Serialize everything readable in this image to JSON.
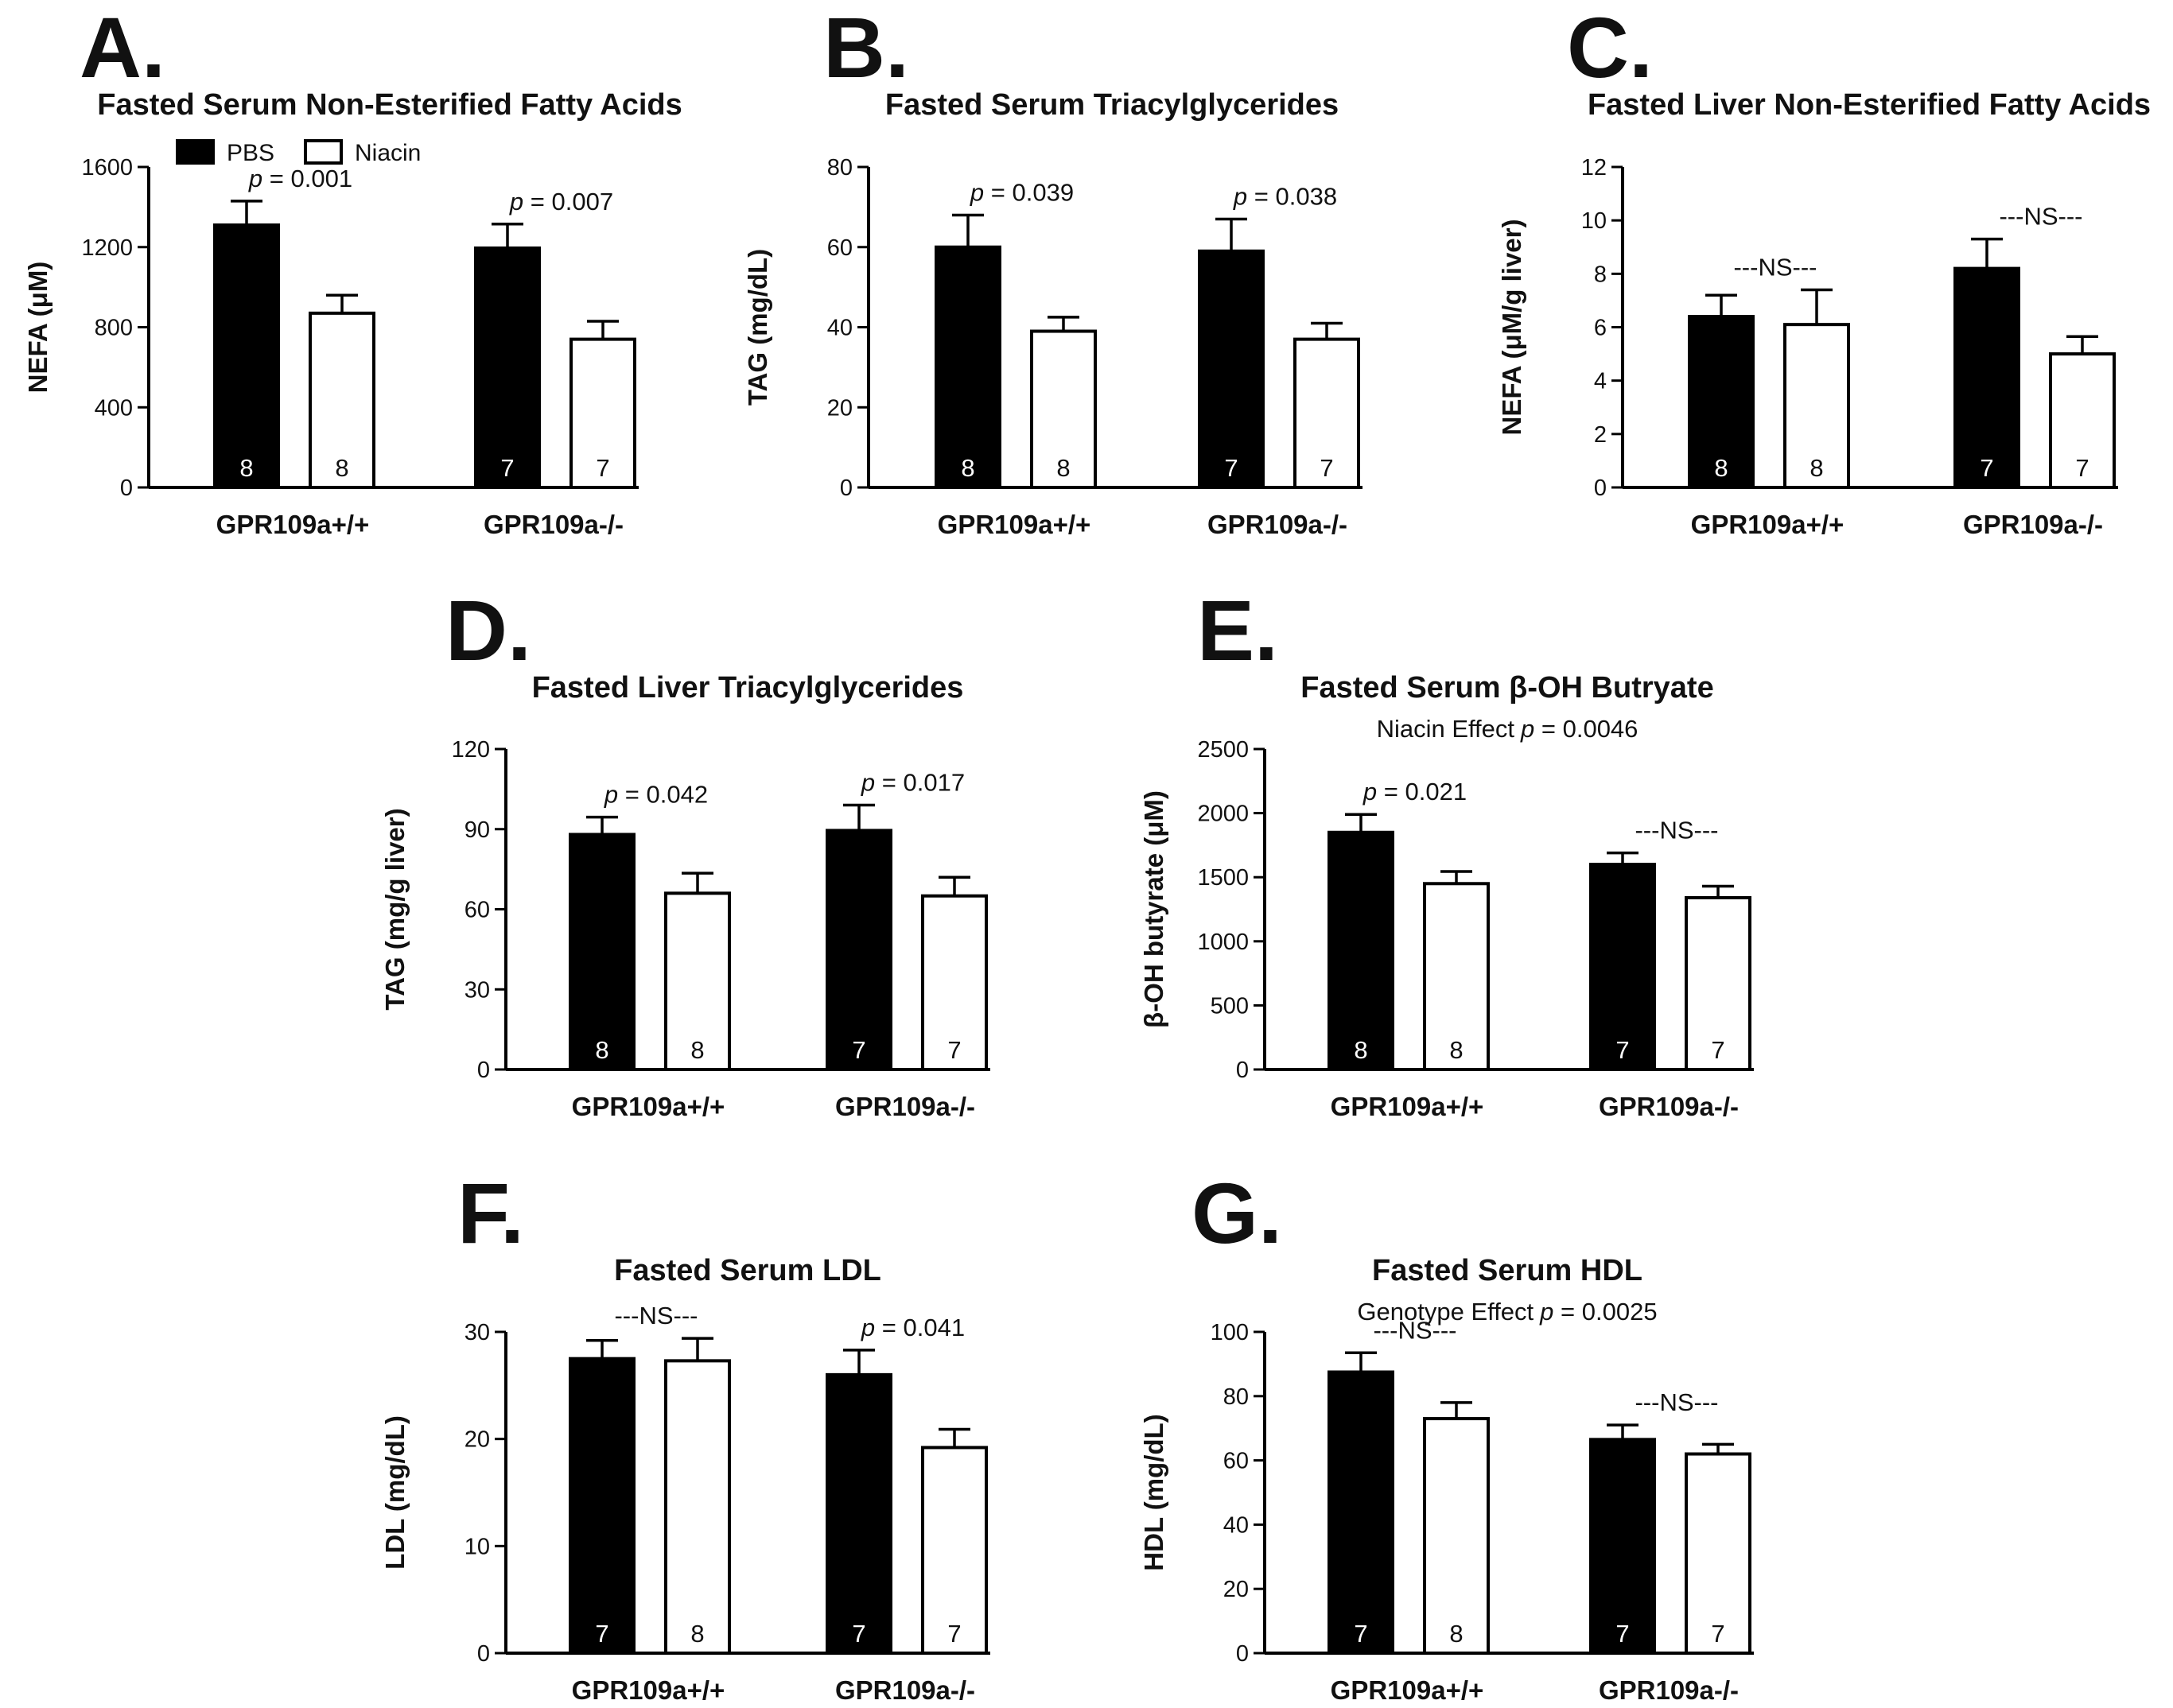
{
  "figure": {
    "legend": {
      "series": [
        {
          "name": "PBS",
          "fill": "#000000"
        },
        {
          "name": "Niacin",
          "fill": "#ffffff"
        }
      ]
    }
  },
  "chart_data": [
    {
      "id": "A",
      "letter": "A.",
      "type": "bar",
      "title": "Fasted Serum Non-Esterified Fatty Acids",
      "subtitle": "",
      "ylabel": "NEFA (μM)",
      "ylim": [
        0,
        1600
      ],
      "yticks": [
        0,
        400,
        800,
        1200,
        1600
      ],
      "categories": [
        "GPR109a+/+",
        "GPR109a-/-"
      ],
      "series": [
        {
          "name": "PBS",
          "color": "#000000",
          "values": [
            1310,
            1195
          ],
          "errors": [
            120,
            120
          ],
          "n": [
            "8",
            "7"
          ]
        },
        {
          "name": "Niacin",
          "color": "#ffffff",
          "values": [
            870,
            740
          ],
          "errors": [
            90,
            90
          ],
          "n": [
            "8",
            "7"
          ]
        }
      ],
      "annotations": [
        {
          "category": 0,
          "prefix": "p",
          "text": " = 0.001"
        },
        {
          "category": 1,
          "prefix": "p",
          "text": " = 0.007"
        }
      ]
    },
    {
      "id": "B",
      "letter": "B.",
      "type": "bar",
      "title": "Fasted Serum Triacylglycerides",
      "subtitle": "",
      "ylabel": "TAG (mg/dL)",
      "ylim": [
        0,
        80
      ],
      "yticks": [
        0,
        20,
        40,
        60,
        80
      ],
      "categories": [
        "GPR109a+/+",
        "GPR109a-/-"
      ],
      "series": [
        {
          "name": "PBS",
          "color": "#000000",
          "values": [
            60,
            59
          ],
          "errors": [
            8,
            8
          ],
          "n": [
            "8",
            "7"
          ]
        },
        {
          "name": "Niacin",
          "color": "#ffffff",
          "values": [
            39,
            37
          ],
          "errors": [
            3.5,
            4
          ],
          "n": [
            "8",
            "7"
          ]
        }
      ],
      "annotations": [
        {
          "category": 0,
          "prefix": "p",
          "text": " = 0.039"
        },
        {
          "category": 1,
          "prefix": "p",
          "text": " = 0.038"
        }
      ]
    },
    {
      "id": "C",
      "letter": "C.",
      "type": "bar",
      "title": "Fasted Liver Non-Esterified Fatty Acids",
      "subtitle": "",
      "ylabel": "NEFA (μM/g liver)",
      "ylim": [
        0,
        12
      ],
      "yticks": [
        0,
        2,
        4,
        6,
        8,
        10,
        12
      ],
      "categories": [
        "GPR109a+/+",
        "GPR109a-/-"
      ],
      "series": [
        {
          "name": "PBS",
          "color": "#000000",
          "values": [
            6.4,
            8.2
          ],
          "errors": [
            0.8,
            1.1
          ],
          "n": [
            "8",
            "7"
          ]
        },
        {
          "name": "Niacin",
          "color": "#ffffff",
          "values": [
            6.1,
            5.0
          ],
          "errors": [
            1.3,
            0.65
          ],
          "n": [
            "8",
            "7"
          ]
        }
      ],
      "annotations": [
        {
          "category": 0,
          "prefix": "",
          "text": "---NS---"
        },
        {
          "category": 1,
          "prefix": "",
          "text": "---NS---"
        }
      ]
    },
    {
      "id": "D",
      "letter": "D.",
      "type": "bar",
      "title": "Fasted Liver Triacylglycerides",
      "subtitle": "",
      "ylabel": "TAG (mg/g liver)",
      "ylim": [
        0,
        120
      ],
      "yticks": [
        0,
        30,
        60,
        90,
        120
      ],
      "categories": [
        "GPR109a+/+",
        "GPR109a-/-"
      ],
      "series": [
        {
          "name": "PBS",
          "color": "#000000",
          "values": [
            88,
            89.5
          ],
          "errors": [
            6.5,
            9.5
          ],
          "n": [
            "8",
            "7"
          ]
        },
        {
          "name": "Niacin",
          "color": "#ffffff",
          "values": [
            66,
            65
          ],
          "errors": [
            7.5,
            7
          ],
          "n": [
            "8",
            "7"
          ]
        }
      ],
      "annotations": [
        {
          "category": 0,
          "prefix": "p",
          "text": " = 0.042"
        },
        {
          "category": 1,
          "prefix": "p",
          "text": " = 0.017"
        }
      ]
    },
    {
      "id": "E",
      "letter": "E.",
      "type": "bar",
      "title": "Fasted Serum β-OH Butryate",
      "subtitle": "Niacin Effect",
      "subtitle_p": "p",
      "subtitle_value": " = 0.0046",
      "ylabel": "β-OH butyrate (μM)",
      "ylim": [
        0,
        2500
      ],
      "yticks": [
        0,
        500,
        1000,
        1500,
        2000,
        2500
      ],
      "categories": [
        "GPR109a+/+",
        "GPR109a-/-"
      ],
      "series": [
        {
          "name": "PBS",
          "color": "#000000",
          "values": [
            1850,
            1600
          ],
          "errors": [
            140,
            90
          ],
          "n": [
            "8",
            "7"
          ]
        },
        {
          "name": "Niacin",
          "color": "#ffffff",
          "values": [
            1450,
            1340
          ],
          "errors": [
            95,
            90
          ],
          "n": [
            "8",
            "7"
          ]
        }
      ],
      "annotations": [
        {
          "category": 0,
          "prefix": "p",
          "text": " = 0.021"
        },
        {
          "category": 1,
          "prefix": "",
          "text": "---NS---"
        }
      ]
    },
    {
      "id": "F",
      "letter": "F.",
      "type": "bar",
      "title": "Fasted Serum LDL",
      "subtitle": "",
      "ylabel": "LDL (mg/dL)",
      "ylim": [
        0,
        30
      ],
      "yticks": [
        0,
        10,
        20,
        30
      ],
      "categories": [
        "GPR109a+/+",
        "GPR109a-/-"
      ],
      "series": [
        {
          "name": "PBS",
          "color": "#000000",
          "values": [
            27.5,
            26
          ],
          "errors": [
            1.7,
            2.3
          ],
          "n": [
            "7",
            "7"
          ]
        },
        {
          "name": "Niacin",
          "color": "#ffffff",
          "values": [
            27.3,
            19.2
          ],
          "errors": [
            2.1,
            1.7
          ],
          "n": [
            "8",
            "7"
          ]
        }
      ],
      "annotations": [
        {
          "category": 0,
          "prefix": "",
          "text": "---NS---"
        },
        {
          "category": 1,
          "prefix": "p",
          "text": " = 0.041"
        }
      ]
    },
    {
      "id": "G",
      "letter": "G.",
      "type": "bar",
      "title": "Fasted Serum HDL",
      "subtitle": "Genotype Effect",
      "subtitle_p": "p",
      "subtitle_value": " = 0.0025",
      "ylabel": "HDL (mg/dL)",
      "ylim": [
        0,
        100
      ],
      "yticks": [
        0,
        20,
        40,
        60,
        80,
        100
      ],
      "categories": [
        "GPR109a+/+",
        "GPR109a-/-"
      ],
      "series": [
        {
          "name": "PBS",
          "color": "#000000",
          "values": [
            87.5,
            66.5
          ],
          "errors": [
            6,
            4.5
          ],
          "n": [
            "7",
            "7"
          ]
        },
        {
          "name": "Niacin",
          "color": "#ffffff",
          "values": [
            73,
            62
          ],
          "errors": [
            5,
            3
          ],
          "n": [
            "8",
            "7"
          ]
        }
      ],
      "annotations": [
        {
          "category": 0,
          "prefix": "",
          "text": "---NS---"
        },
        {
          "category": 1,
          "prefix": "",
          "text": "---NS---"
        }
      ]
    }
  ]
}
